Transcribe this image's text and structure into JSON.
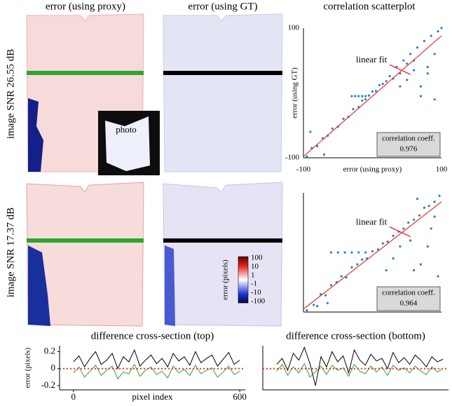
{
  "column_titles": [
    "error (using proxy)",
    "error (using GT)",
    "correlation scatterplot"
  ],
  "row_labels": [
    "image SNR 26.55 dB",
    "image SNR 17.37 dB"
  ],
  "photo_label": "photo",
  "colorbar": {
    "label": "error (pixels)",
    "ticks": [
      100,
      10,
      1,
      -1,
      -10,
      -100
    ]
  },
  "chart_data": [
    {
      "type": "scatter",
      "xlabel": "error (using proxy)",
      "ylabel": "error (using GT)",
      "annotation": "linear fit",
      "corr_label": "correlation coeff.",
      "corr_value": 0.976,
      "color": "#2f7fc1",
      "fit_color": "#e8332a",
      "xlim": [
        -100,
        100
      ],
      "ylim": [
        -100,
        100
      ],
      "xticks": [
        -100,
        100
      ],
      "yticks": [
        -100,
        100
      ],
      "fit": {
        "x": [
          -100,
          100
        ],
        "y": [
          -98,
          88
        ]
      },
      "x": [
        -95,
        -88,
        -80,
        -72,
        -65,
        -58,
        -50,
        -42,
        -35,
        -28,
        -20,
        -15,
        -10,
        -5,
        0,
        5,
        10,
        15,
        20,
        25,
        30,
        35,
        40,
        45,
        50,
        55,
        60,
        65,
        70,
        75,
        80,
        85,
        90,
        95,
        -30,
        -25,
        -20,
        -15,
        -10,
        60,
        70,
        80,
        90,
        50,
        40,
        100,
        -90,
        -70
      ],
      "y": [
        -98,
        -85,
        -82,
        -70,
        -66,
        -55,
        -52,
        -40,
        -37,
        -25,
        -22,
        -12,
        -10,
        -4,
        2,
        3,
        12,
        14,
        18,
        26,
        22,
        40,
        30,
        50,
        20,
        60,
        35,
        70,
        10,
        80,
        40,
        88,
        60,
        95,
        -5,
        -5,
        -5,
        -5,
        -5,
        50,
        -5,
        30,
        -10,
        45,
        10,
        100,
        -60,
        -95
      ]
    },
    {
      "type": "scatter",
      "annotation": "linear fit",
      "corr_label": "correlation coeff.",
      "corr_value": 0.964,
      "color": "#2f7fc1",
      "fit_color": "#e8332a",
      "xlim": [
        -100,
        100
      ],
      "ylim": [
        -100,
        100
      ],
      "fit": {
        "x": [
          -100,
          100
        ],
        "y": [
          -95,
          85
        ]
      },
      "x": [
        -95,
        -85,
        -75,
        -68,
        -60,
        -52,
        -45,
        -38,
        -30,
        -22,
        -15,
        -8,
        0,
        8,
        15,
        22,
        30,
        38,
        45,
        52,
        60,
        68,
        75,
        82,
        90,
        97,
        -60,
        -50,
        -40,
        -30,
        -20,
        -10,
        40,
        55,
        70,
        85,
        95,
        30,
        60,
        80,
        90,
        65,
        20,
        -80,
        -65
      ],
      "y": [
        -97,
        -88,
        -70,
        -72,
        -55,
        -50,
        -40,
        -42,
        -25,
        -20,
        -12,
        -10,
        2,
        5,
        15,
        18,
        28,
        35,
        40,
        50,
        55,
        62,
        75,
        78,
        85,
        95,
        0,
        0,
        0,
        0,
        0,
        0,
        10,
        20,
        -20,
        40,
        -40,
        -10,
        -30,
        10,
        60,
        90,
        -30,
        -90,
        -85
      ]
    },
    {
      "type": "line",
      "title": "difference cross-section (top)",
      "ylabel": "error (pixels)",
      "xlabel": "pixel index",
      "xlim": [
        -50,
        620
      ],
      "ylim": [
        -0.25,
        0.27
      ],
      "xticks": [
        0,
        600
      ],
      "yticks": [
        -0.2,
        0,
        0.2
      ],
      "reference_line": 0,
      "reference_color": "#e8332a",
      "x": [
        0,
        20,
        40,
        60,
        80,
        100,
        120,
        140,
        160,
        180,
        200,
        220,
        240,
        260,
        280,
        300,
        320,
        340,
        360,
        380,
        400,
        420,
        440,
        460,
        480,
        500,
        520,
        540,
        560,
        580,
        600
      ],
      "series": [
        {
          "color": "#000000",
          "values": [
            0.08,
            0.15,
            0.02,
            0.12,
            0.2,
            0.05,
            0.1,
            0.18,
            0.0,
            0.14,
            0.08,
            0.22,
            0.03,
            0.1,
            0.16,
            0.06,
            0.12,
            0.02,
            0.18,
            0.09,
            0.14,
            0.04,
            0.2,
            0.07,
            0.12,
            0.16,
            0.03,
            0.11,
            0.19,
            0.05,
            0.1
          ]
        },
        {
          "color": "#2aa52a",
          "values": [
            -0.05,
            0.02,
            -0.1,
            -0.03,
            0.04,
            -0.08,
            -0.02,
            0.03,
            -0.12,
            -0.04,
            -0.06,
            0.05,
            -0.09,
            -0.02,
            0.02,
            -0.07,
            -0.03,
            -0.11,
            0.03,
            -0.05,
            -0.01,
            -0.08,
            0.04,
            -0.06,
            -0.02,
            0.01,
            -0.1,
            -0.04,
            0.03,
            -0.07,
            -0.03
          ]
        }
      ]
    },
    {
      "type": "line",
      "title": "difference cross-section (bottom)",
      "xlim": [
        -50,
        620
      ],
      "ylim": [
        -0.25,
        0.27
      ],
      "reference_line": 0,
      "reference_color": "#e8332a",
      "x": [
        0,
        20,
        40,
        60,
        80,
        100,
        120,
        140,
        160,
        180,
        200,
        220,
        240,
        260,
        280,
        300,
        320,
        340,
        360,
        380,
        400,
        420,
        440,
        460,
        480,
        500,
        520,
        540,
        560,
        580,
        600
      ],
      "series": [
        {
          "color": "#000000",
          "values": [
            0.05,
            0.12,
            -0.02,
            0.18,
            0.1,
            0.25,
            0.06,
            -0.2,
            0.14,
            0.02,
            0.2,
            0.08,
            0.15,
            -0.05,
            0.22,
            0.1,
            0.04,
            0.17,
            0.09,
            0.12,
            0.0,
            0.19,
            0.07,
            0.13,
            0.05,
            0.16,
            0.1,
            0.02,
            0.14,
            0.08,
            0.11
          ]
        },
        {
          "color": "#2aa52a",
          "values": [
            -0.03,
            0.05,
            -0.08,
            0.02,
            -0.05,
            0.06,
            -0.1,
            -0.04,
            0.03,
            -0.07,
            0.04,
            -0.02,
            0.01,
            -0.09,
            0.05,
            -0.03,
            -0.06,
            0.03,
            -0.04,
            0.02,
            -0.08,
            0.04,
            -0.02,
            0.01,
            -0.05,
            0.03,
            -0.03,
            -0.07,
            0.02,
            -0.04,
            0.0
          ]
        }
      ]
    }
  ]
}
